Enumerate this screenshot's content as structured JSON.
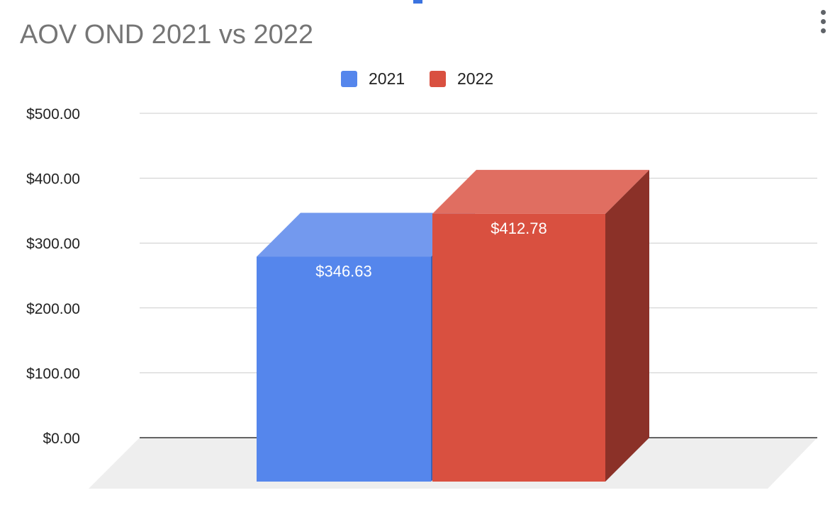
{
  "chart": {
    "title": "AOV OND 2021 vs 2022"
  },
  "colors": {
    "accent_marker": "#3b73e0",
    "menu_dots": "#5f6368",
    "gridline": "#cccccc",
    "baseline": "#333333",
    "floor": "#eeeeee"
  },
  "icons": {
    "menu": "more-vertical-icon"
  },
  "chart_data": {
    "type": "bar",
    "three_d": true,
    "title": "AOV OND 2021 vs 2022",
    "categories": [
      ""
    ],
    "series": [
      {
        "name": "2021",
        "values": [
          346.63
        ],
        "value_label": "$346.63",
        "color": "#5586ec",
        "top_color": "#7399ee",
        "side_color": "#3a62b8"
      },
      {
        "name": "2022",
        "values": [
          412.78
        ],
        "value_label": "$412.78",
        "color": "#d95040",
        "top_color": "#e06e61",
        "side_color": "#8b3128"
      }
    ],
    "ylim": [
      0,
      500
    ],
    "yticks": [
      0,
      100,
      200,
      300,
      400,
      500
    ],
    "ytick_labels": [
      "$0.00",
      "$100.00",
      "$200.00",
      "$300.00",
      "$400.00",
      "$500.00"
    ],
    "xlabel": "",
    "ylabel": "",
    "legend": {
      "position": "top",
      "entries": [
        "2021",
        "2022"
      ]
    },
    "grid": true
  }
}
